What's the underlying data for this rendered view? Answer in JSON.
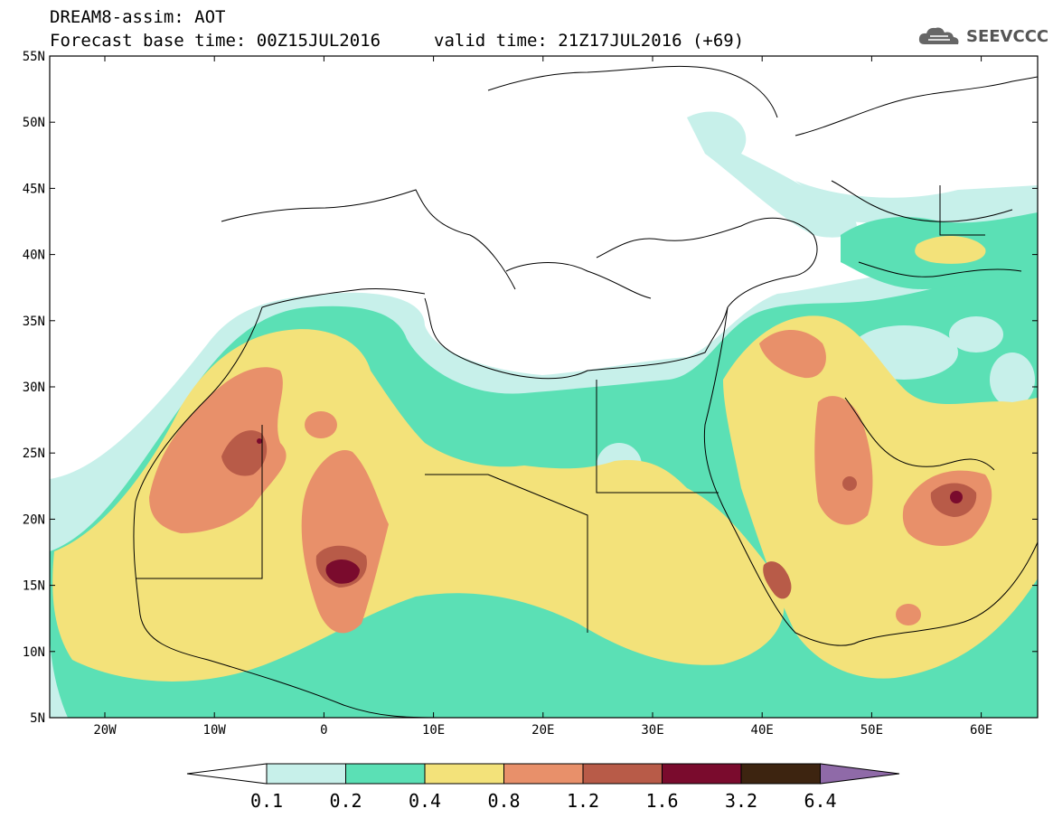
{
  "header": {
    "title": "DREAM8-assim: AOT",
    "base_time": "Forecast base time: 00Z15JUL2016",
    "valid_time": "valid time: 21Z17JUL2016 (+69)"
  },
  "logo": {
    "text": "SEEVCCC",
    "icon": "cloud-icon"
  },
  "axes": {
    "lat_labels": [
      "55N",
      "50N",
      "45N",
      "40N",
      "35N",
      "30N",
      "25N",
      "20N",
      "15N",
      "10N",
      "5N"
    ],
    "lon_labels": [
      "20W",
      "10W",
      "0",
      "10E",
      "20E",
      "30E",
      "40E",
      "50E",
      "60E"
    ]
  },
  "colorbar": {
    "thresholds": [
      "0.1",
      "0.2",
      "0.4",
      "0.8",
      "1.2",
      "1.6",
      "3.2",
      "6.4"
    ],
    "colors": [
      "#ffffff",
      "#c7f0ea",
      "#5be0b5",
      "#f3e27a",
      "#e8906a",
      "#b85b48",
      "#7a0b2d",
      "#3d2410",
      "#8f6aa8"
    ]
  }
}
